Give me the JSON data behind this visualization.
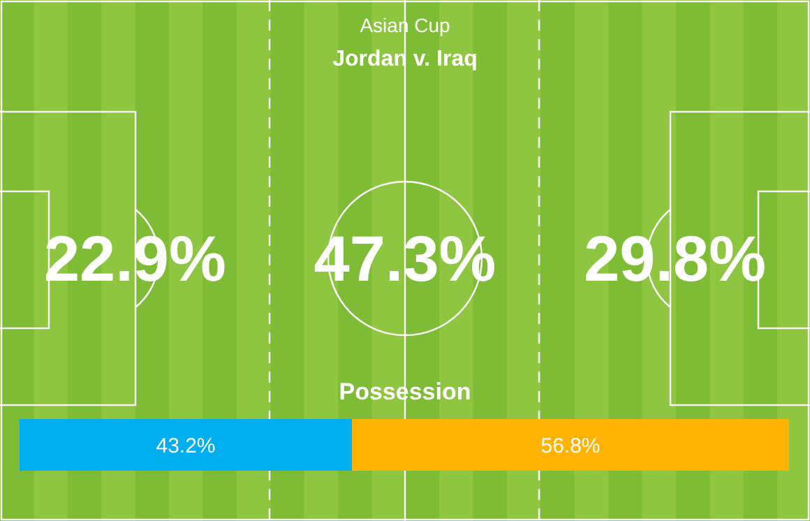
{
  "chart_data": [
    {
      "type": "other",
      "title": "Asian Cup",
      "subtitle": "Jordan v. Iraq",
      "annotations": [
        "22.9%",
        "47.3%",
        "29.8%"
      ]
    },
    {
      "type": "bar",
      "orientation": "horizontal",
      "stacked": true,
      "title": "Possession",
      "categories": [
        null
      ],
      "xlim": [
        0,
        100
      ],
      "tick_labels": false,
      "series": [
        {
          "color": "#00aeef",
          "values": [
            43.2
          ],
          "value_labels": [
            "43.2%"
          ]
        },
        {
          "color": "#ffb300",
          "values": [
            56.8
          ],
          "value_labels": [
            "56.8%"
          ]
        }
      ]
    }
  ]
}
